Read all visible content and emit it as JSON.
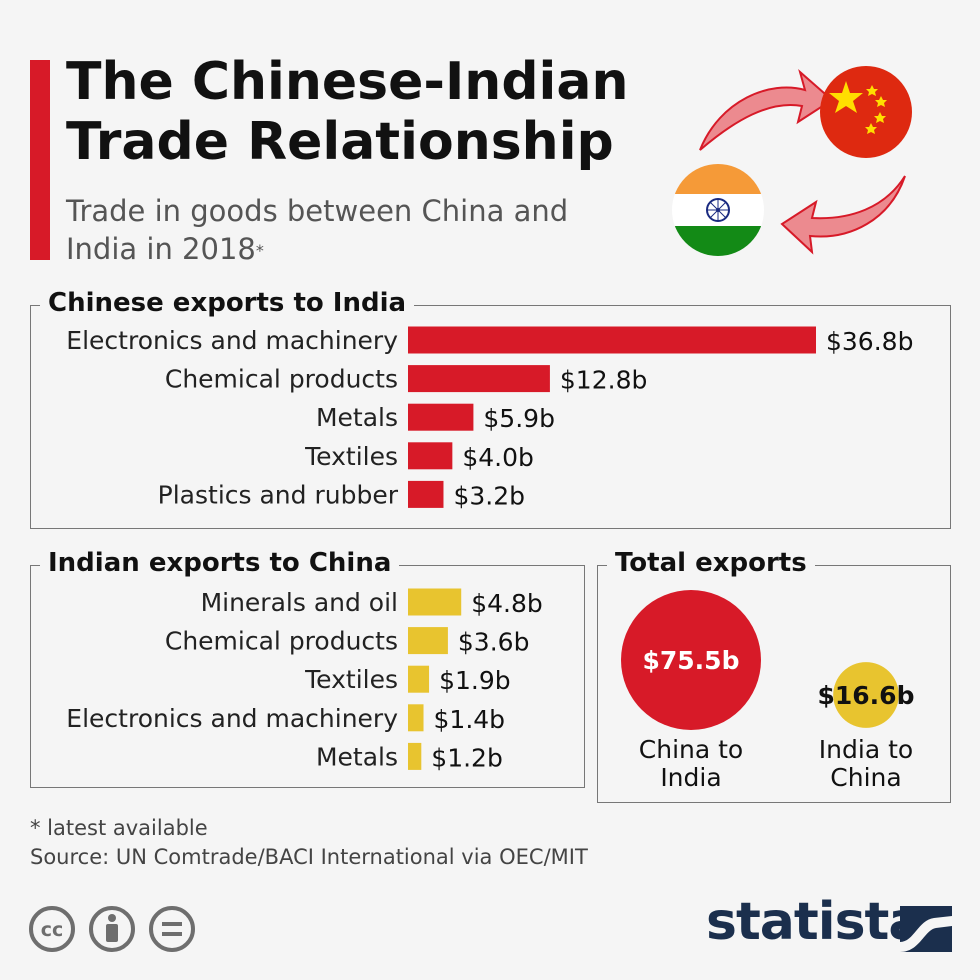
{
  "header": {
    "title_line1": "The Chinese-Indian",
    "title_line2": "Trade Relationship",
    "subtitle_line1": "Trade in goods between China and",
    "subtitle_line2": "India in 2018",
    "subtitle_mark": "*"
  },
  "colors": {
    "accent_red": "#d71a28",
    "accent_yellow": "#e8c42f",
    "brand_navy": "#1b2f4d"
  },
  "chart_data": [
    {
      "type": "bar",
      "title": "Chinese exports to India",
      "categories": [
        "Electronics and machinery",
        "Chemical products",
        "Metals",
        "Textiles",
        "Plastics and rubber"
      ],
      "values": [
        36.8,
        12.8,
        5.9,
        4.0,
        3.2
      ],
      "value_labels": [
        "$36.8b",
        "$12.8b",
        "$5.9b",
        "$4.0b",
        "$3.2b"
      ],
      "color": "#d71a28"
    },
    {
      "type": "bar",
      "title": "Indian exports to China",
      "categories": [
        "Minerals and oil",
        "Chemical products",
        "Textiles",
        "Electronics and machinery",
        "Metals"
      ],
      "values": [
        4.8,
        3.6,
        1.9,
        1.4,
        1.2
      ],
      "value_labels": [
        "$4.8b",
        "$3.6b",
        "$1.9b",
        "$1.4b",
        "$1.2b"
      ],
      "color": "#e8c42f"
    },
    {
      "type": "bubble",
      "title": "Total exports",
      "items": [
        {
          "value": 75.5,
          "value_label": "$75.5b",
          "label_line1": "China to",
          "label_line2": "India",
          "color": "#d71a28"
        },
        {
          "value": 16.6,
          "value_label": "$16.6b",
          "label_line1": "India to",
          "label_line2": "China",
          "color": "#e8c42f"
        }
      ]
    }
  ],
  "footer": {
    "note": "* latest available",
    "source": "Source: UN Comtrade/BACI International via OEC/MIT",
    "brand": "statista"
  },
  "icons": [
    "china-flag-icon",
    "india-flag-icon",
    "cycle-arrow-icon",
    "cc-icon",
    "attribution-icon",
    "no-derivatives-icon",
    "statista-logo-icon"
  ]
}
